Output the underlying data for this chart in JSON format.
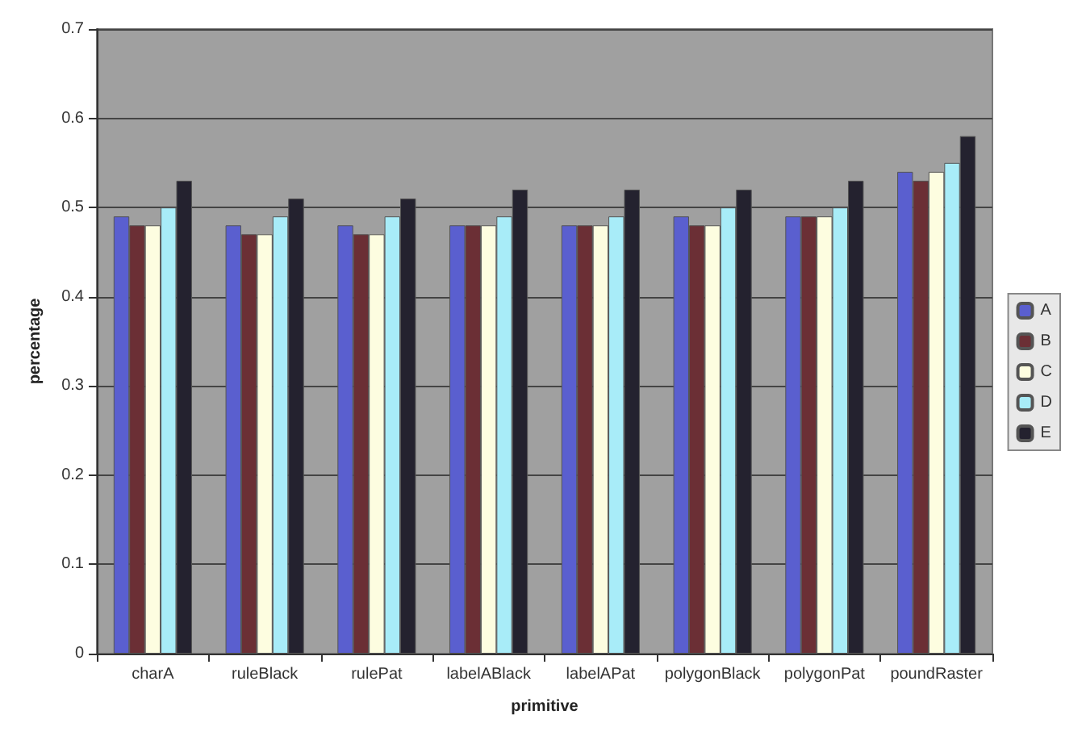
{
  "chart_data": {
    "type": "bar",
    "xlabel": "primitive",
    "ylabel": "percentage",
    "categories": [
      "charA",
      "ruleBlack",
      "rulePat",
      "labelABlack",
      "labelAPat",
      "polygonBlack",
      "polygonPat",
      "poundRaster"
    ],
    "series": [
      {
        "name": "A",
        "color": "#5a5fcf",
        "values": [
          0.49,
          0.48,
          0.48,
          0.48,
          0.48,
          0.49,
          0.49,
          0.54
        ]
      },
      {
        "name": "B",
        "color": "#6b2f35",
        "values": [
          0.48,
          0.47,
          0.47,
          0.48,
          0.48,
          0.48,
          0.49,
          0.53
        ]
      },
      {
        "name": "C",
        "color": "#fdfde0",
        "values": [
          0.48,
          0.47,
          0.47,
          0.48,
          0.48,
          0.48,
          0.49,
          0.54
        ]
      },
      {
        "name": "D",
        "color": "#a8ecf8",
        "values": [
          0.5,
          0.49,
          0.49,
          0.49,
          0.49,
          0.5,
          0.5,
          0.55
        ]
      },
      {
        "name": "E",
        "color": "#24222f",
        "values": [
          0.53,
          0.51,
          0.51,
          0.52,
          0.52,
          0.52,
          0.53,
          0.58
        ]
      }
    ],
    "ylim": [
      0,
      0.7
    ],
    "yticks": [
      0,
      0.1,
      0.2,
      0.3,
      0.4,
      0.5,
      0.6,
      0.7
    ],
    "grid": "y",
    "legend": "right"
  }
}
